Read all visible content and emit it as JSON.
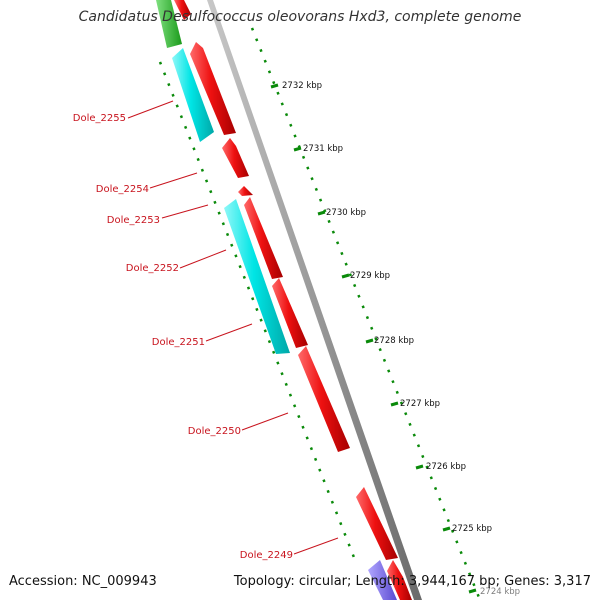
{
  "title": "Candidatus Desulfococcus oleovorans Hxd3, complete genome",
  "accession": "Accession: NC_009943",
  "topology": "Topology: circular; Length: 3,944,167 bp; Genes: 3,317",
  "colors": {
    "forward_cds": "#ee1111",
    "reverse_cds": "#00e5e5",
    "top_gene": "#22bb22",
    "bottom_gene": "#7766ee",
    "backbone": "#888888",
    "ticks": "#0a8a0a",
    "label": "#c8141e"
  },
  "scale_labels": [
    "2732 kbp",
    "2731 kbp",
    "2730 kbp",
    "2729 kbp",
    "2728 kbp",
    "2727 kbp",
    "2726 kbp",
    "2725 kbp",
    "2724 kbp"
  ],
  "gene_labels": [
    "Dole_2255",
    "Dole_2254",
    "Dole_2253",
    "Dole_2252",
    "Dole_2251",
    "Dole_2250",
    "Dole_2249"
  ]
}
